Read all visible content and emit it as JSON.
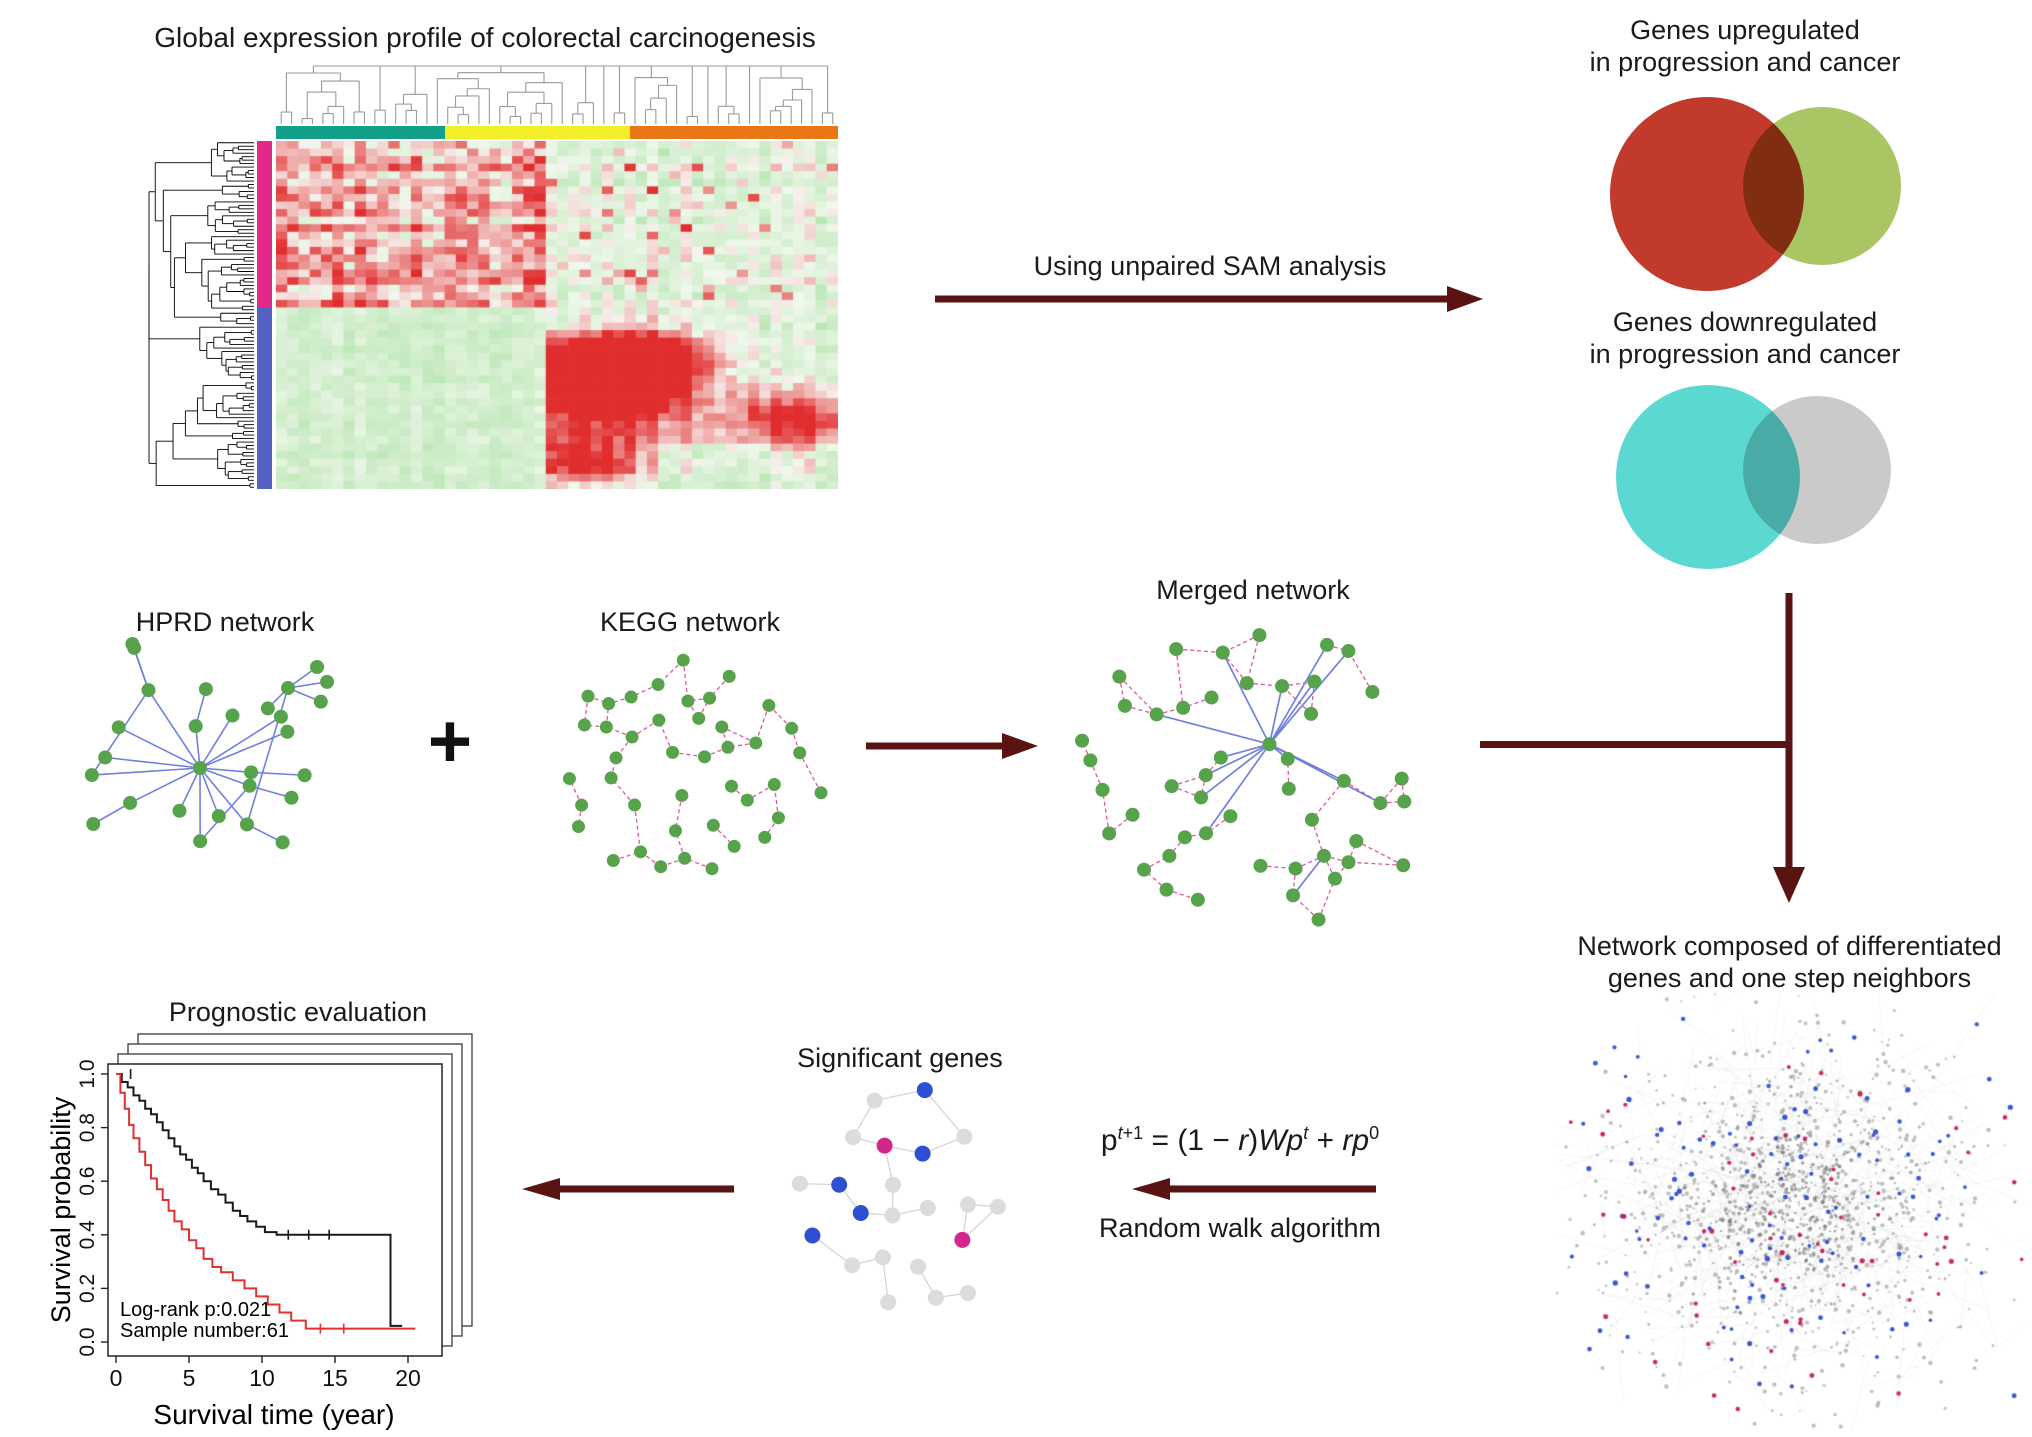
{
  "colors": {
    "arrow": "#5a1313",
    "node_green": "#57a34c",
    "edge_blue": "#7180dd",
    "edge_pink": "#e0569d",
    "dot_blue": "#2f4fd2",
    "dot_red": "#cb1f55",
    "dot_magenta": "#d4258c",
    "venn_red": "#c23a2c",
    "venn_green": "#a6c35b",
    "venn_cyan": "#5cd8d2",
    "venn_gray": "#c6c6c6",
    "bar_teal": "#12a089",
    "bar_yellow": "#f4ee28",
    "bar_orange": "#e97716",
    "bar_pink": "#e1298c",
    "bar_blue": "#5661c6",
    "km_black": "#1a1a1a",
    "km_red": "#e03030"
  },
  "heatmap": {
    "title": "Global expression profile of colorectal carcinogenesis",
    "gen": {
      "rows": 46,
      "cols": 50,
      "row_split": 0.48,
      "col_split": 0.47,
      "seed": 12
    }
  },
  "sam": {
    "label": "Using unpaired SAM analysis"
  },
  "venn_up": {
    "line1": "Genes upregulated",
    "line2": "in progression and cancer"
  },
  "venn_down": {
    "line1": "Genes downregulated",
    "line2": "in progression and cancer"
  },
  "networks": {
    "hprd": {
      "title": "HPRD network",
      "seed": 3
    },
    "plus": "+",
    "kegg": {
      "title": "KEGG network",
      "seed": 21,
      "nodes": 42
    },
    "merged": {
      "title": "Merged network",
      "seed": 8,
      "nodes": 48
    }
  },
  "neighbor_network": {
    "line1": "Network composed of differentiated",
    "line2": "genes and one step neighbors",
    "gen": {
      "seed": 6,
      "edges": 650,
      "gray_dots": 1050,
      "blue_dots": 125,
      "red_dots": 62
    }
  },
  "random_walk": {
    "label": "Random walk algorithm",
    "formula": {
      "base1": "p",
      "sup1a": "t",
      "sup1b": "+1",
      "mid1": " = (1 − ",
      "rvar": "r",
      "mid2": ")",
      "base2": "Wp",
      "sup2": "t",
      "mid3": " + ",
      "base3": "rp",
      "sup3": "0"
    }
  },
  "significant": {
    "title": "Significant genes",
    "seed": 14,
    "nodes": 22,
    "blue_nodes": [
      1,
      4,
      8,
      13,
      18
    ],
    "magenta_nodes": [
      10,
      16
    ]
  },
  "prognostic": {
    "title": "Prognostic evaluation",
    "ylabel": "Survival probability",
    "xlabel": "Survival time (year)",
    "annotation_logrank": "Log-rank p:0.021",
    "annotation_sample": "Sample number:61",
    "chart_data": {
      "type": "line",
      "title": "Prognostic evaluation",
      "xlabel": "Survival time (year)",
      "ylabel": "Survival probability",
      "xticks": [
        "0",
        "5",
        "10",
        "15",
        "20"
      ],
      "yticks": [
        "0.0",
        "0.2",
        "0.4",
        "0.6",
        "0.8",
        "1.0"
      ],
      "xlim": [
        0,
        22
      ],
      "ylim": [
        0,
        1.05
      ],
      "series": [
        {
          "name": "black-curve",
          "color": "#1a1a1a",
          "steps": [
            [
              0,
              1.0
            ],
            [
              0.4,
              0.97
            ],
            [
              0.8,
              0.95
            ],
            [
              1.2,
              0.92
            ],
            [
              1.6,
              0.9
            ],
            [
              2,
              0.87
            ],
            [
              2.4,
              0.85
            ],
            [
              2.8,
              0.82
            ],
            [
              3.2,
              0.79
            ],
            [
              3.6,
              0.76
            ],
            [
              4,
              0.73
            ],
            [
              4.4,
              0.7
            ],
            [
              4.8,
              0.68
            ],
            [
              5.2,
              0.65
            ],
            [
              5.6,
              0.63
            ],
            [
              6,
              0.6
            ],
            [
              6.5,
              0.57
            ],
            [
              7,
              0.55
            ],
            [
              7.5,
              0.52
            ],
            [
              8,
              0.49
            ],
            [
              8.5,
              0.47
            ],
            [
              9,
              0.45
            ],
            [
              9.6,
              0.43
            ],
            [
              10.2,
              0.41
            ],
            [
              11,
              0.4
            ],
            [
              18.8,
              0.4
            ],
            [
              18.8,
              0.06
            ],
            [
              19.6,
              0.06
            ]
          ],
          "censors": [
            [
              1,
              1.0
            ],
            [
              11.8,
              0.4
            ],
            [
              13.2,
              0.4
            ],
            [
              14.6,
              0.4
            ]
          ]
        },
        {
          "name": "red-curve",
          "color": "#e03030",
          "steps": [
            [
              0,
              1.0
            ],
            [
              0.3,
              0.93
            ],
            [
              0.6,
              0.87
            ],
            [
              0.9,
              0.81
            ],
            [
              1.2,
              0.76
            ],
            [
              1.6,
              0.71
            ],
            [
              2,
              0.66
            ],
            [
              2.4,
              0.61
            ],
            [
              2.8,
              0.57
            ],
            [
              3.2,
              0.53
            ],
            [
              3.6,
              0.49
            ],
            [
              4,
              0.45
            ],
            [
              4.5,
              0.42
            ],
            [
              5,
              0.38
            ],
            [
              5.5,
              0.35
            ],
            [
              6,
              0.31
            ],
            [
              6.6,
              0.28
            ],
            [
              7.2,
              0.26
            ],
            [
              8,
              0.23
            ],
            [
              8.8,
              0.2
            ],
            [
              9.6,
              0.17
            ],
            [
              10.4,
              0.14
            ],
            [
              11.2,
              0.11
            ],
            [
              12,
              0.08
            ],
            [
              13,
              0.05
            ],
            [
              20.5,
              0.05
            ]
          ],
          "censors": [
            [
              14,
              0.05
            ],
            [
              15.6,
              0.05
            ]
          ]
        }
      ]
    }
  }
}
